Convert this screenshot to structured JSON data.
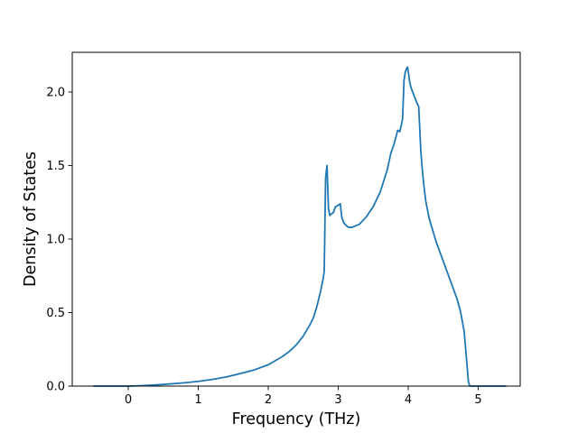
{
  "chart_data": {
    "type": "line",
    "title": "",
    "xlabel": "Frequency (THz)",
    "ylabel": "Density of States",
    "xlim": [
      -0.8,
      5.6
    ],
    "ylim": [
      0,
      2.27
    ],
    "grid": false,
    "x_ticks": [
      0,
      1,
      2,
      3,
      4,
      5
    ],
    "x_tick_labels": [
      "0",
      "1",
      "2",
      "3",
      "4",
      "5"
    ],
    "y_ticks": [
      0.0,
      0.5,
      1.0,
      1.5,
      2.0
    ],
    "y_tick_labels": [
      "0.0",
      "0.5",
      "1.0",
      "1.5",
      "2.0"
    ],
    "series": [
      {
        "name": "",
        "color": "#1f77b4",
        "x": [
          -0.5,
          -0.2,
          0.0,
          0.2,
          0.4,
          0.6,
          0.8,
          1.0,
          1.2,
          1.4,
          1.6,
          1.8,
          2.0,
          2.2,
          2.3,
          2.4,
          2.5,
          2.6,
          2.65,
          2.7,
          2.75,
          2.78,
          2.8,
          2.82,
          2.84,
          2.86,
          2.88,
          2.9,
          2.93,
          2.96,
          3.0,
          3.03,
          3.05,
          3.08,
          3.12,
          3.15,
          3.2,
          3.3,
          3.4,
          3.5,
          3.6,
          3.7,
          3.75,
          3.8,
          3.85,
          3.88,
          3.9,
          3.92,
          3.94,
          3.96,
          3.99,
          4.01,
          4.02,
          4.04,
          4.08,
          4.12,
          4.15,
          4.18,
          4.2,
          4.22,
          4.25,
          4.3,
          4.4,
          4.5,
          4.6,
          4.7,
          4.75,
          4.8,
          4.83,
          4.86,
          4.88,
          4.9,
          4.95,
          5.1,
          5.4
        ],
        "y": [
          0.0,
          0.0,
          0.0,
          0.003,
          0.008,
          0.015,
          0.022,
          0.032,
          0.045,
          0.062,
          0.085,
          0.11,
          0.145,
          0.2,
          0.235,
          0.28,
          0.34,
          0.42,
          0.47,
          0.55,
          0.65,
          0.72,
          0.78,
          1.42,
          1.5,
          1.21,
          1.16,
          1.17,
          1.18,
          1.22,
          1.23,
          1.24,
          1.15,
          1.11,
          1.09,
          1.08,
          1.08,
          1.1,
          1.15,
          1.22,
          1.32,
          1.47,
          1.58,
          1.65,
          1.74,
          1.73,
          1.77,
          1.82,
          2.08,
          2.14,
          2.17,
          2.11,
          2.07,
          2.03,
          1.98,
          1.93,
          1.9,
          1.6,
          1.48,
          1.38,
          1.26,
          1.14,
          0.98,
          0.85,
          0.72,
          0.59,
          0.5,
          0.37,
          0.2,
          0.03,
          0.0,
          0.0,
          0.0,
          0.0,
          0.0
        ]
      }
    ]
  }
}
